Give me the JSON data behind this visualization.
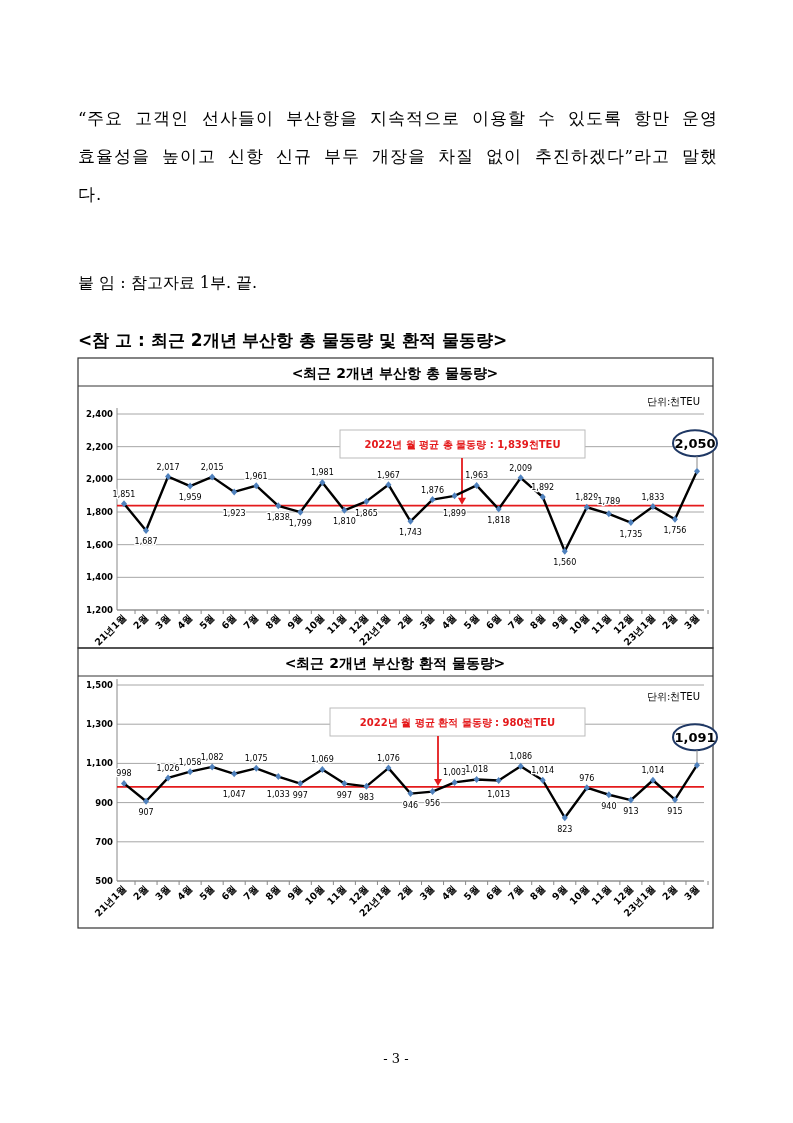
{
  "chart_data": [
    {
      "type": "line",
      "title": "<최근 2개년 부산항 총 물동량>",
      "categories": [
        "21년1월",
        "2월",
        "3월",
        "4월",
        "5월",
        "6월",
        "7월",
        "8월",
        "9월",
        "10월",
        "11월",
        "12월",
        "22년1월",
        "2월",
        "3월",
        "4월",
        "5월",
        "6월",
        "7월",
        "8월",
        "9월",
        "10월",
        "11월",
        "12월",
        "23년1월",
        "2월",
        "3월"
      ],
      "series": [
        {
          "color": "#000000",
          "values": [
            1851,
            1687,
            2017,
            1959,
            2015,
            1923,
            1961,
            1838,
            1799,
            1981,
            1810,
            1865,
            1967,
            1743,
            1876,
            1899,
            1963,
            1818,
            2009,
            1892,
            1560,
            1829,
            1789,
            1735,
            1833,
            1756,
            2050
          ],
          "value_labels": [
            "1,851",
            "1,687",
            "2,017",
            "1,959",
            "2,015",
            "1,923",
            "1,961",
            "1,838",
            "1,799",
            "1,981",
            "1,810",
            "1,865",
            "1,967",
            "1,743",
            "1,876",
            "1,899",
            "1,963",
            "1,818",
            "2,009",
            "1,892",
            "1,560",
            "1,829",
            "1,789",
            "1,735",
            "1,833",
            "1,756",
            "2,050"
          ]
        }
      ],
      "ylim": [
        1200,
        2400
      ],
      "yticks": [
        {
          "value": 1200,
          "label": "1,200"
        },
        {
          "value": 1400,
          "label": "1,400"
        },
        {
          "value": 1600,
          "label": "1,600"
        },
        {
          "value": 1800,
          "label": "1,800"
        },
        {
          "value": 2000,
          "label": "2,000"
        },
        {
          "value": 2200,
          "label": "2,200"
        },
        {
          "value": 2400,
          "label": "2,400"
        }
      ],
      "ref_lines": [
        {
          "axis": "y",
          "value": 1839,
          "label": "2022년 월 평균 총 물동량 : 1,839천TEU",
          "color": "#e41a1c"
        }
      ],
      "grid": "y",
      "marker": "diamond",
      "line_style": "solid",
      "annotations": [
        "“주요 고객인 선사들이 부산항을 지속적으로 이용할 수 있도록 항만 운영 효율성을 높이고 신항 신규 부두 개장을 차질 없이 추진하겠다”라고 말했다.",
        "붙 임 : 참고자료 1부.   끝.",
        "<참 고 : 최근 2개년 부산항 총 물동량 및 환적 물동량>",
        "단위:천TEU"
      ]
    },
    {
      "type": "line",
      "title": "<최근 2개년 부산항 환적 물동량>",
      "categories": [
        "21년1월",
        "2월",
        "3월",
        "4월",
        "5월",
        "6월",
        "7월",
        "8월",
        "9월",
        "10월",
        "11월",
        "12월",
        "22년1월",
        "2월",
        "3월",
        "4월",
        "5월",
        "6월",
        "7월",
        "8월",
        "9월",
        "10월",
        "11월",
        "12월",
        "23년1월",
        "2월",
        "3월"
      ],
      "series": [
        {
          "color": "#000000",
          "values": [
            998,
            907,
            1026,
            1058,
            1082,
            1047,
            1075,
            1033,
            997,
            1069,
            997,
            983,
            1076,
            946,
            956,
            1003,
            1018,
            1013,
            1086,
            1014,
            823,
            976,
            940,
            913,
            1014,
            915,
            1091
          ],
          "value_labels": [
            "998",
            "907",
            "1,026",
            "1,058",
            "1,082",
            "1,047",
            "1,075",
            "1,033",
            "997",
            "1,069",
            "997",
            "983",
            "1,076",
            "946",
            "956",
            "1,003",
            "1,018",
            "1,013",
            "1,086",
            "1,014",
            "823",
            "976",
            "940",
            "913",
            "1,014",
            "915",
            "1,091"
          ]
        }
      ],
      "ylim": [
        500,
        1500
      ],
      "yticks": [
        500,
        700,
        900,
        {
          "value": 1100,
          "label": "1,100"
        },
        {
          "value": 1300,
          "label": "1,300"
        },
        {
          "value": 1500,
          "label": "1,500"
        }
      ],
      "ref_lines": [
        {
          "axis": "y",
          "value": 980,
          "label": "2022년 월 평균 환적 물동량 : 980천TEU",
          "color": "#e41a1c"
        }
      ],
      "grid": "y",
      "marker": "diamond",
      "line_style": "solid",
      "annotations": [
        "단위:천TEU",
        "- 3 -"
      ]
    }
  ]
}
